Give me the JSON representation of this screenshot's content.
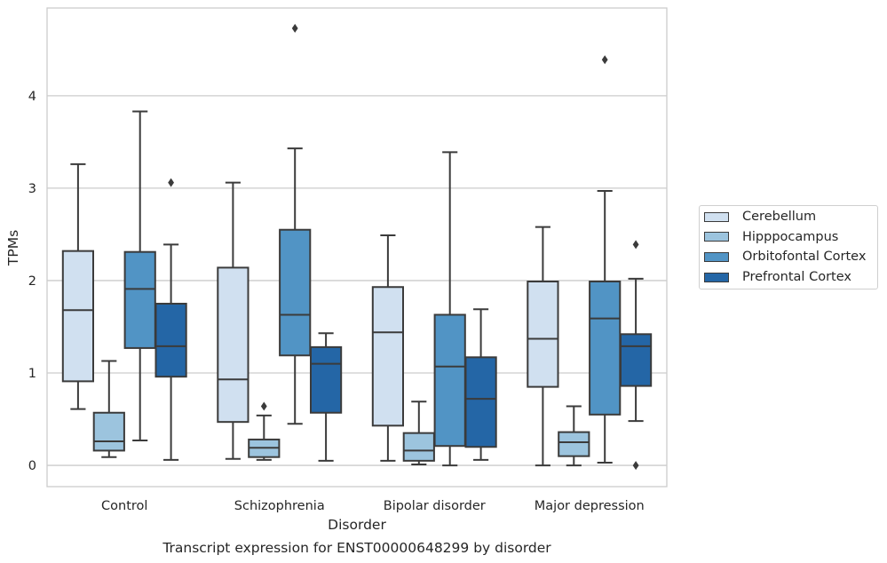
{
  "chart_data": {
    "type": "boxplot",
    "title": "Transcript expression for ENST00000648299 by disorder",
    "xlabel": "Disorder",
    "ylabel": "TPMs",
    "ylim": [
      -0.23,
      4.95
    ],
    "yticks": [
      0,
      1,
      2,
      3,
      4
    ],
    "grid": "horizontal",
    "legend_position": "right",
    "categories": [
      "Control",
      "Schizophrenia",
      "Bipolar disorder",
      "Major depression"
    ],
    "series": [
      {
        "name": "Cerebellum",
        "color": "#d0e0f0",
        "boxes": [
          {
            "whislo": 0.61,
            "q1": 0.91,
            "med": 1.68,
            "q3": 2.32,
            "whishi": 3.26,
            "fliers": []
          },
          {
            "whislo": 0.07,
            "q1": 0.47,
            "med": 0.93,
            "q3": 2.14,
            "whishi": 3.06,
            "fliers": []
          },
          {
            "whislo": 0.05,
            "q1": 0.43,
            "med": 1.44,
            "q3": 1.93,
            "whishi": 2.49,
            "fliers": []
          },
          {
            "whislo": 0.0,
            "q1": 0.85,
            "med": 1.37,
            "q3": 1.99,
            "whishi": 2.58,
            "fliers": []
          }
        ]
      },
      {
        "name": "Hipppocampus",
        "color": "#9cc4de",
        "boxes": [
          {
            "whislo": 0.09,
            "q1": 0.16,
            "med": 0.26,
            "q3": 0.57,
            "whishi": 1.13,
            "fliers": []
          },
          {
            "whislo": 0.06,
            "q1": 0.09,
            "med": 0.19,
            "q3": 0.28,
            "whishi": 0.54,
            "fliers": [
              0.64
            ]
          },
          {
            "whislo": 0.01,
            "q1": 0.05,
            "med": 0.16,
            "q3": 0.35,
            "whishi": 0.69,
            "fliers": []
          },
          {
            "whislo": 0.0,
            "q1": 0.1,
            "med": 0.25,
            "q3": 0.36,
            "whishi": 0.64,
            "fliers": []
          }
        ]
      },
      {
        "name": "Orbitofontal Cortex",
        "color": "#5194c5",
        "boxes": [
          {
            "whislo": 0.27,
            "q1": 1.27,
            "med": 1.91,
            "q3": 2.31,
            "whishi": 3.83,
            "fliers": []
          },
          {
            "whislo": 0.45,
            "q1": 1.19,
            "med": 1.63,
            "q3": 2.55,
            "whishi": 3.43,
            "fliers": [
              4.73
            ]
          },
          {
            "whislo": 0.0,
            "q1": 0.21,
            "med": 1.07,
            "q3": 1.63,
            "whishi": 3.39,
            "fliers": []
          },
          {
            "whislo": 0.03,
            "q1": 0.55,
            "med": 1.59,
            "q3": 1.99,
            "whishi": 2.97,
            "fliers": [
              4.39
            ]
          }
        ]
      },
      {
        "name": "Prefrontal Cortex",
        "color": "#2466a6",
        "boxes": [
          {
            "whislo": 0.06,
            "q1": 0.96,
            "med": 1.29,
            "q3": 1.75,
            "whishi": 2.39,
            "fliers": [
              3.06
            ]
          },
          {
            "whislo": 0.05,
            "q1": 0.57,
            "med": 1.1,
            "q3": 1.28,
            "whishi": 1.43,
            "fliers": []
          },
          {
            "whislo": 0.06,
            "q1": 0.2,
            "med": 0.72,
            "q3": 1.17,
            "whishi": 1.69,
            "fliers": []
          },
          {
            "whislo": 0.48,
            "q1": 0.86,
            "med": 1.29,
            "q3": 1.42,
            "whishi": 2.02,
            "fliers": [
              2.39,
              0.0
            ]
          }
        ]
      }
    ]
  }
}
